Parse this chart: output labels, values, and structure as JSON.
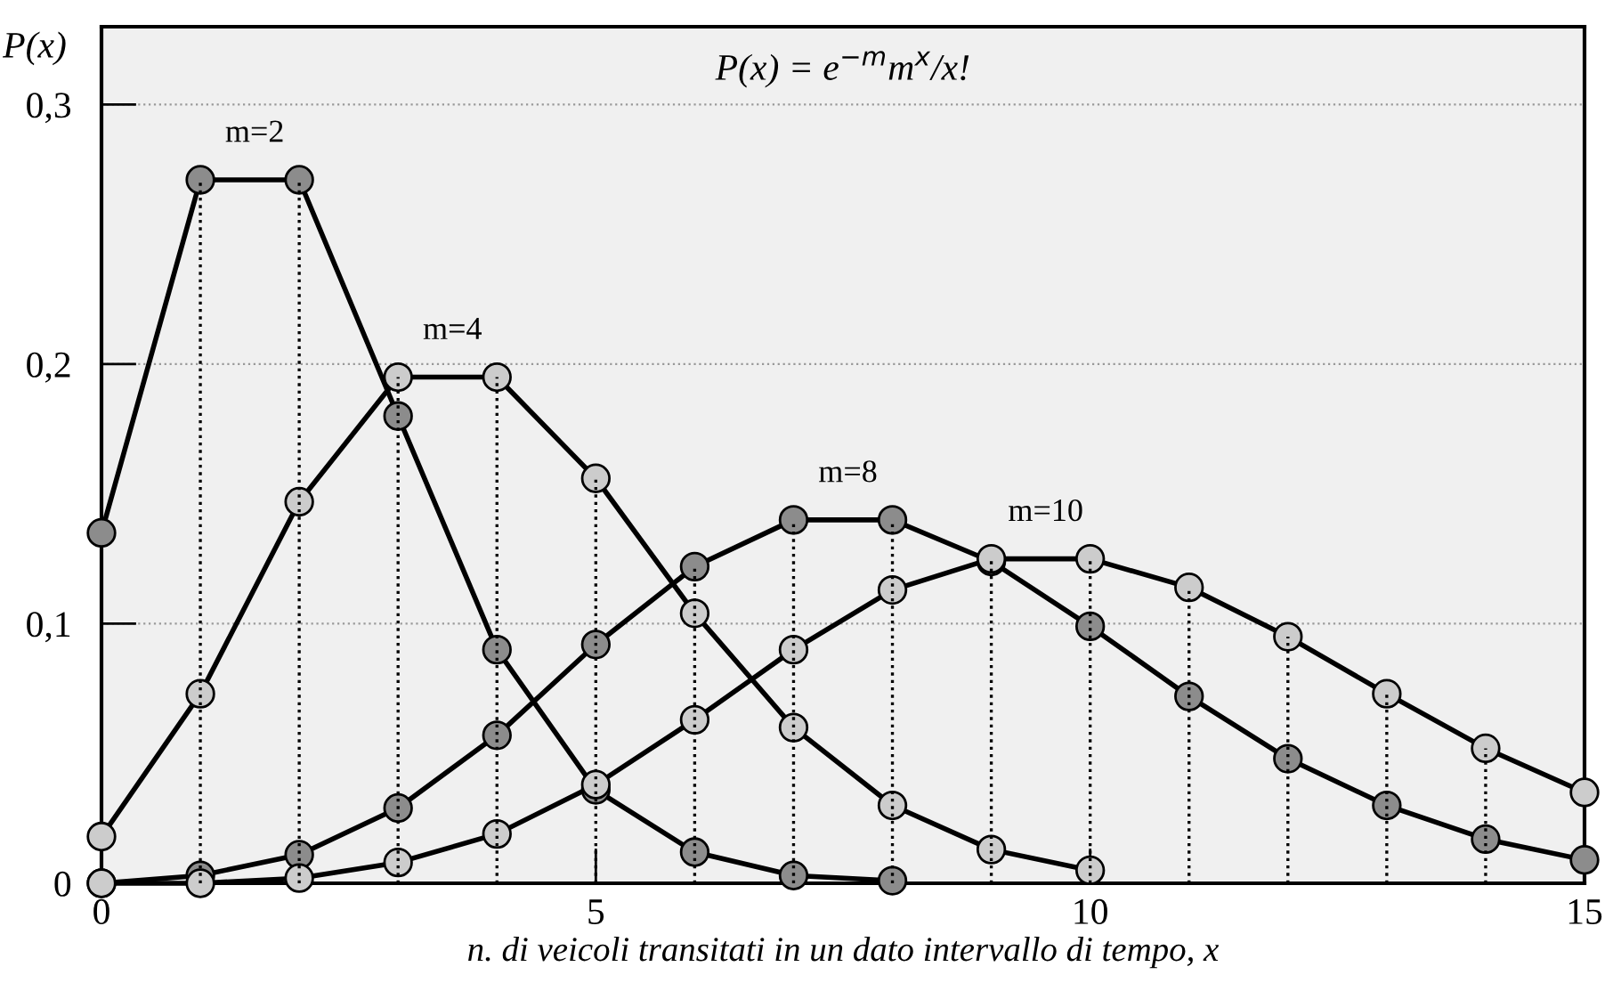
{
  "chart_data": {
    "type": "line",
    "xlabel": "n. di veicoli transitati in un dato intervallo di tempo, x",
    "ylabel": "P(x)",
    "annotations": [
      "P(x) = e$^{−m}$m$^{x}$/x!"
    ],
    "xlim": [
      0,
      15
    ],
    "xticks": [
      0,
      5,
      10,
      15
    ],
    "ylim": [
      0,
      0.33
    ],
    "yticks": [
      0,
      {
        "value": 0.1,
        "label": "0,1"
      },
      {
        "value": 0.2,
        "label": "0,2"
      },
      {
        "value": 0.3,
        "label": "0,3"
      }
    ],
    "grid": "y",
    "marker": "circle",
    "line_style": "solid",
    "series": [
      {
        "name": "m=2",
        "color": "#8c8c8c",
        "x": [
          0,
          1,
          2,
          3,
          4,
          5,
          6,
          7,
          8
        ],
        "values": [
          0.135,
          0.271,
          0.271,
          0.18,
          0.09,
          0.036,
          0.012,
          0.003,
          0.001
        ],
        "errors": [
          null,
          [
            0,
            0.271
          ],
          [
            0,
            0.271
          ],
          null,
          null,
          null,
          null,
          null,
          null
        ]
      },
      {
        "name": "m=4",
        "color": "#cccccc",
        "x": [
          0,
          1,
          2,
          3,
          4,
          5,
          6,
          7,
          8,
          9,
          10
        ],
        "values": [
          0.018,
          0.073,
          0.147,
          0.195,
          0.195,
          0.156,
          0.104,
          0.06,
          0.03,
          0.013,
          0.005
        ],
        "errors": [
          null,
          null,
          null,
          [
            0,
            0.195
          ],
          [
            0,
            0.195
          ],
          [
            0,
            0.156
          ],
          null,
          null,
          null,
          null,
          null
        ]
      },
      {
        "name": "m=8",
        "color": "#8c8c8c",
        "x": [
          0,
          1,
          2,
          3,
          4,
          5,
          6,
          7,
          8,
          9,
          10,
          11,
          12,
          13,
          14,
          15
        ],
        "values": [
          0.0,
          0.003,
          0.011,
          0.029,
          0.057,
          0.092,
          0.122,
          0.14,
          0.14,
          0.124,
          0.099,
          0.072,
          0.048,
          0.03,
          0.017,
          0.009
        ],
        "errors": [
          null,
          null,
          null,
          null,
          null,
          null,
          [
            0,
            0.122
          ],
          [
            0,
            0.14
          ],
          [
            0,
            0.14
          ],
          null,
          null,
          null,
          null,
          null,
          null,
          null
        ]
      },
      {
        "name": "m=10",
        "color": "#cccccc",
        "x": [
          0,
          1,
          2,
          3,
          4,
          5,
          6,
          7,
          8,
          9,
          10,
          11,
          12,
          13,
          14,
          15
        ],
        "values": [
          0.0,
          0.0,
          0.002,
          0.008,
          0.019,
          0.038,
          0.063,
          0.09,
          0.113,
          0.125,
          0.125,
          0.114,
          0.095,
          0.073,
          0.052,
          0.035
        ],
        "errors": [
          null,
          null,
          null,
          null,
          null,
          null,
          null,
          null,
          null,
          [
            0,
            0.125
          ],
          [
            0,
            0.125
          ],
          [
            0,
            0.114
          ],
          [
            0,
            0.095
          ],
          [
            0,
            0.073
          ],
          [
            0,
            0.052
          ],
          null
        ]
      }
    ]
  }
}
